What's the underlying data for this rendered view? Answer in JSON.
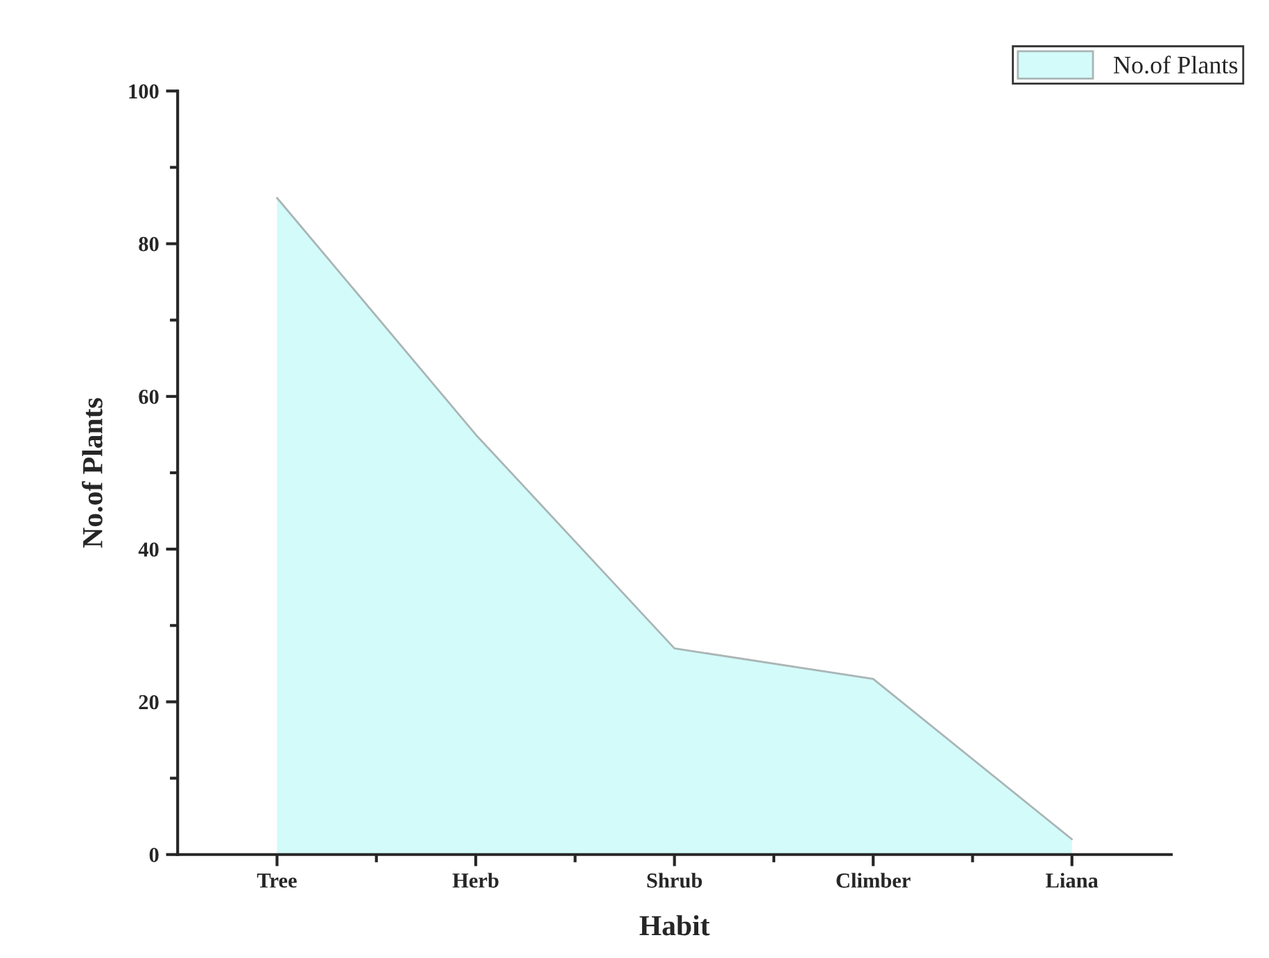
{
  "chart_data": {
    "type": "area",
    "xlabel": "Habit",
    "ylabel": "No.of Plants",
    "categories": [
      "Tree",
      "Herb",
      "Shrub",
      "Climber",
      "Liana"
    ],
    "series": [
      {
        "name": "No.of Plants",
        "color": "#d2fbfa",
        "values": [
          86,
          55,
          27,
          23,
          2
        ]
      }
    ],
    "ylim": [
      0,
      100
    ],
    "yticks": [
      0,
      20,
      40,
      60,
      80,
      100
    ],
    "grid": false,
    "legend": "top right"
  }
}
